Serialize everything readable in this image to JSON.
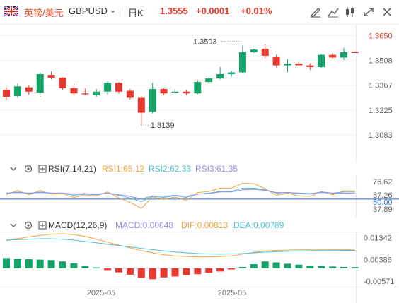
{
  "header": {
    "pair_cn": "英镑/美元",
    "pair_code": "GBPUSD",
    "chevron": "⌄",
    "period": "日K",
    "price": "1.3555",
    "change": "+0.0001",
    "change_pct": "+0.01%",
    "toolbar_icons": [
      "draw-icon",
      "indicator-icon",
      "candle-type-icon",
      "fullscreen-icon",
      "close-icon"
    ]
  },
  "colors": {
    "up": "#e8392f",
    "down": "#16a36a",
    "accent": "#e8542a"
  },
  "rsi": {
    "title": "RSI(7,14,21)",
    "rsi1": "RSI1:65.12",
    "rsi2": "RSI2:62.33",
    "rsi3": "RSI3:61.35",
    "colors": {
      "rsi1": "#f5a33b",
      "rsi2": "#4cc0d9",
      "rsi3": "#9b8ee6"
    }
  },
  "macd": {
    "title": "MACD(12,26,9)",
    "macd": "MACD:0.00048",
    "dif": "DIF:0.00813",
    "dea": "DEA:0.00789",
    "colors": {
      "macd": "#9b8ee6",
      "dif": "#f5a33b",
      "dea": "#4cc0d9"
    }
  },
  "x_labels": [
    "2025-05",
    "2025-05"
  ],
  "chart_data": [
    {
      "type": "candlestick",
      "title": "GBPUSD 日K",
      "ylim": [
        1.295,
        1.37
      ],
      "y_ticks": [
        "1.3650",
        "1.3508",
        "1.3367",
        "1.3225",
        "1.3083"
      ],
      "annotations": [
        {
          "label": "1.3593",
          "candle_index": 21,
          "kind": "high"
        },
        {
          "label": "1.3139",
          "candle_index": 12,
          "kind": "low"
        }
      ],
      "candles": [
        {
          "o": 1.334,
          "h": 1.3355,
          "l": 1.3282,
          "c": 1.33
        },
        {
          "o": 1.3305,
          "h": 1.3375,
          "l": 1.3295,
          "c": 1.336
        },
        {
          "o": 1.3355,
          "h": 1.3365,
          "l": 1.3312,
          "c": 1.333
        },
        {
          "o": 1.3325,
          "h": 1.344,
          "l": 1.33,
          "c": 1.343
        },
        {
          "o": 1.3425,
          "h": 1.3445,
          "l": 1.34,
          "c": 1.341
        },
        {
          "o": 1.341,
          "h": 1.3412,
          "l": 1.334,
          "c": 1.335
        },
        {
          "o": 1.335,
          "h": 1.3375,
          "l": 1.3305,
          "c": 1.332
        },
        {
          "o": 1.332,
          "h": 1.3348,
          "l": 1.331,
          "c": 1.3315
        },
        {
          "o": 1.331,
          "h": 1.3345,
          "l": 1.33,
          "c": 1.333
        },
        {
          "o": 1.333,
          "h": 1.339,
          "l": 1.331,
          "c": 1.338
        },
        {
          "o": 1.338,
          "h": 1.3385,
          "l": 1.332,
          "c": 1.333
        },
        {
          "o": 1.3335,
          "h": 1.3345,
          "l": 1.3285,
          "c": 1.3295
        },
        {
          "o": 1.3295,
          "h": 1.3305,
          "l": 1.3139,
          "c": 1.321
        },
        {
          "o": 1.3215,
          "h": 1.338,
          "l": 1.3205,
          "c": 1.3345
        },
        {
          "o": 1.3345,
          "h": 1.335,
          "l": 1.331,
          "c": 1.332
        },
        {
          "o": 1.3325,
          "h": 1.3345,
          "l": 1.332,
          "c": 1.333
        },
        {
          "o": 1.333,
          "h": 1.334,
          "l": 1.331,
          "c": 1.332
        },
        {
          "o": 1.332,
          "h": 1.3395,
          "l": 1.3315,
          "c": 1.3385
        },
        {
          "o": 1.3385,
          "h": 1.3412,
          "l": 1.3375,
          "c": 1.3405
        },
        {
          "o": 1.3405,
          "h": 1.347,
          "l": 1.34,
          "c": 1.343
        },
        {
          "o": 1.343,
          "h": 1.345,
          "l": 1.3415,
          "c": 1.344
        },
        {
          "o": 1.344,
          "h": 1.3593,
          "l": 1.3435,
          "c": 1.3555
        },
        {
          "o": 1.3555,
          "h": 1.3575,
          "l": 1.355,
          "c": 1.357
        },
        {
          "o": 1.3575,
          "h": 1.36,
          "l": 1.352,
          "c": 1.3535
        },
        {
          "o": 1.353,
          "h": 1.354,
          "l": 1.347,
          "c": 1.348
        },
        {
          "o": 1.348,
          "h": 1.3515,
          "l": 1.344,
          "c": 1.349
        },
        {
          "o": 1.349,
          "h": 1.35,
          "l": 1.3475,
          "c": 1.348
        },
        {
          "o": 1.348,
          "h": 1.3492,
          "l": 1.3455,
          "c": 1.347
        },
        {
          "o": 1.347,
          "h": 1.3545,
          "l": 1.3465,
          "c": 1.354
        },
        {
          "o": 1.354,
          "h": 1.355,
          "l": 1.352,
          "c": 1.3525
        },
        {
          "o": 1.3525,
          "h": 1.358,
          "l": 1.351,
          "c": 1.3555
        },
        {
          "o": 1.3555,
          "h": 1.356,
          "l": 1.355,
          "c": 1.3555
        }
      ]
    },
    {
      "type": "line",
      "title": "RSI(7,14,21)",
      "ylim": [
        20,
        90
      ],
      "y_ticks": [
        "76.62",
        "57.26",
        "50.00",
        "37.89"
      ],
      "reference_line": 50.0,
      "series": [
        {
          "name": "RSI1",
          "values": [
            58,
            66,
            58,
            66,
            59,
            60,
            53,
            58,
            56,
            63,
            52,
            44,
            33,
            54,
            49,
            54,
            47,
            62,
            64,
            70,
            70,
            79,
            78,
            69,
            57,
            61,
            56,
            55,
            64,
            58,
            65,
            65
          ]
        },
        {
          "name": "RSI2",
          "values": [
            60,
            63,
            60,
            63,
            61,
            61,
            57,
            59,
            58,
            61,
            57,
            52,
            45,
            55,
            53,
            56,
            53,
            59,
            61,
            64,
            64,
            70,
            70,
            67,
            61,
            62,
            60,
            59,
            63,
            61,
            63,
            63
          ]
        },
        {
          "name": "RSI3",
          "values": [
            61,
            62,
            61,
            62,
            61,
            61,
            59,
            60,
            59,
            61,
            58,
            55,
            50,
            56,
            55,
            57,
            55,
            59,
            60,
            63,
            63,
            67,
            68,
            66,
            62,
            62,
            61,
            60,
            62,
            61,
            61,
            61
          ]
        }
      ]
    },
    {
      "type": "bar",
      "title": "MACD(12,26,9)",
      "ylim": [
        -0.0075,
        0.0155
      ],
      "y_ticks": [
        "0.01342",
        "0.00386",
        "-0.00571"
      ],
      "series": [
        {
          "name": "MACD",
          "values": [
            0.0045,
            0.0042,
            0.004,
            0.0038,
            0.0036,
            0.003,
            0.0022,
            0.001,
            0.0004,
            -0.0008,
            -0.0018,
            -0.0028,
            -0.0042,
            -0.0048,
            -0.004,
            -0.0036,
            -0.003,
            -0.0026,
            -0.002,
            -0.0014,
            -0.0005,
            0.0006,
            0.0018,
            0.003,
            0.0026,
            0.002,
            0.0016,
            0.0012,
            0.001,
            0.0008,
            0.0006,
            0.0005
          ]
        },
        {
          "name": "DIF",
          "values": [
            0.0122,
            0.013,
            0.0138,
            0.0145,
            0.015,
            0.0152,
            0.0148,
            0.014,
            0.0128,
            0.0115,
            0.0102,
            0.009,
            0.0078,
            0.0068,
            0.006,
            0.0055,
            0.0052,
            0.005,
            0.005,
            0.0052,
            0.0055,
            0.0062,
            0.007,
            0.0076,
            0.0079,
            0.008,
            0.0081,
            0.0081,
            0.0081,
            0.0081,
            0.0081,
            0.0081
          ]
        },
        {
          "name": "DEA",
          "values": [
            0.0125,
            0.0126,
            0.0128,
            0.013,
            0.013,
            0.0128,
            0.0124,
            0.0118,
            0.0112,
            0.0106,
            0.01,
            0.0094,
            0.0088,
            0.0082,
            0.0077,
            0.0072,
            0.0068,
            0.0065,
            0.0063,
            0.0062,
            0.0063,
            0.0065,
            0.0068,
            0.0071,
            0.0073,
            0.0075,
            0.0076,
            0.0077,
            0.0078,
            0.0078,
            0.0079,
            0.0079
          ]
        }
      ]
    }
  ]
}
